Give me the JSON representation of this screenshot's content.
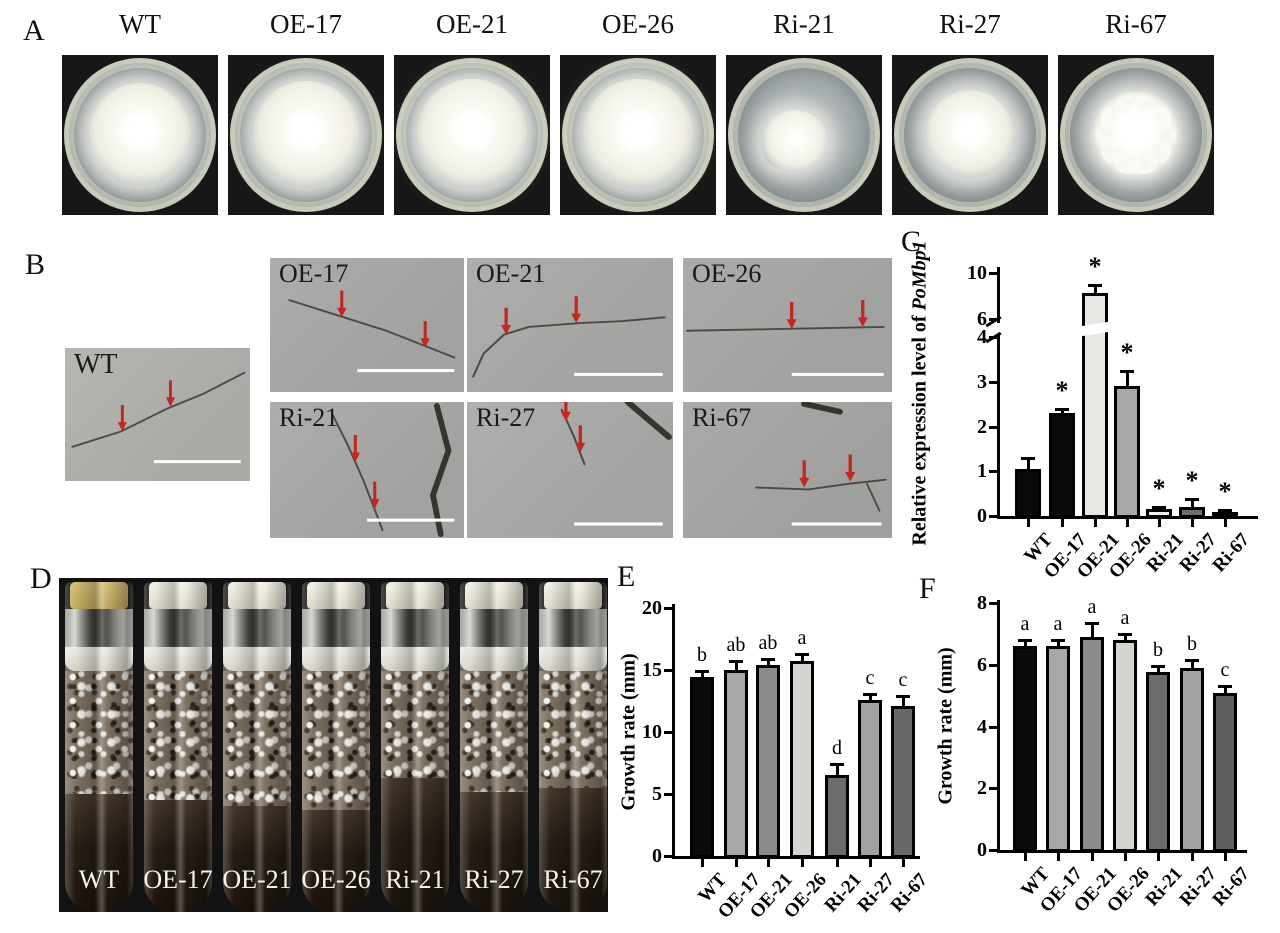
{
  "panels": {
    "A": {
      "letter": "A",
      "dishes": [
        {
          "label": "WT",
          "colony_scale": 0.72,
          "center_spot": true,
          "shape": "round"
        },
        {
          "label": "OE-17",
          "colony_scale": 0.75,
          "center_spot": true,
          "shape": "round"
        },
        {
          "label": "OE-21",
          "colony_scale": 0.78,
          "center_spot": true,
          "shape": "round"
        },
        {
          "label": "OE-26",
          "colony_scale": 0.78,
          "center_spot": true,
          "shape": "round"
        },
        {
          "label": "Ri-21",
          "colony_scale": 0.46,
          "center_spot": false,
          "shape": "irregular"
        },
        {
          "label": "Ri-27",
          "colony_scale": 0.62,
          "center_spot": true,
          "shape": "round"
        },
        {
          "label": "Ri-67",
          "colony_scale": 0.6,
          "center_spot": true,
          "shape": "star"
        }
      ]
    },
    "B": {
      "letter": "B",
      "micrographs": [
        {
          "label": "WT",
          "hypha": [
            [
              4,
              52
            ],
            [
              30,
              44
            ],
            [
              55,
              32
            ],
            [
              75,
              24
            ],
            [
              97,
              13
            ]
          ],
          "arrows": [
            [
              31,
              44
            ],
            [
              57,
              31
            ]
          ],
          "scale_bar": [
            48,
            59,
            95
          ]
        },
        {
          "label": "OE-17",
          "hypha": [
            [
              10,
              22
            ],
            [
              35,
              30
            ],
            [
              60,
              38
            ],
            [
              95,
              52
            ]
          ],
          "arrows": [
            [
              37,
              31
            ],
            [
              80,
              47
            ]
          ],
          "scale_bar": [
            45,
            58,
            95
          ]
        },
        {
          "label": "OE-21",
          "hypha": [
            [
              3,
              62
            ],
            [
              8,
              50
            ],
            [
              18,
              40
            ],
            [
              30,
              36
            ],
            [
              55,
              34
            ],
            [
              75,
              33
            ],
            [
              96,
              31
            ]
          ],
          "arrows": [
            [
              19,
              40
            ],
            [
              53,
              34
            ]
          ],
          "scale_bar": [
            52,
            60,
            95
          ]
        },
        {
          "label": "OE-26",
          "hypha": [
            [
              2,
              38
            ],
            [
              50,
              37
            ],
            [
              96,
              36
            ]
          ],
          "arrows": [
            [
              52,
              37
            ],
            [
              86,
              36
            ]
          ],
          "scale_bar": [
            52,
            60,
            96
          ]
        },
        {
          "label": "Ri-21",
          "hypha": [
            [
              32,
              6
            ],
            [
              40,
              22
            ],
            [
              48,
              40
            ],
            [
              55,
              58
            ],
            [
              58,
              66
            ]
          ],
          "extra": [
            [
              86,
              2
            ],
            [
              92,
              25
            ],
            [
              84,
              48
            ],
            [
              88,
              68
            ]
          ],
          "arrows": [
            [
              44,
              31
            ],
            [
              54,
              55
            ]
          ],
          "scale_bar": [
            50,
            60,
            95
          ]
        },
        {
          "label": "Ri-27",
          "hypha": [
            [
              46,
              4
            ],
            [
              52,
              18
            ],
            [
              57,
              32
            ]
          ],
          "extra": [
            [
              78,
              0
            ],
            [
              98,
              18
            ]
          ],
          "arrows": [
            [
              48,
              10
            ],
            [
              55,
              26
            ]
          ],
          "scale_bar": [
            52,
            62,
            95
          ]
        },
        {
          "label": "Ri-67",
          "hypha": [
            [
              35,
              44
            ],
            [
              60,
              45
            ],
            [
              80,
              42
            ],
            [
              97,
              40
            ]
          ],
          "branch": [
            [
              88,
              42
            ],
            [
              94,
              56
            ]
          ],
          "extra": [
            [
              58,
              1
            ],
            [
              75,
              5
            ]
          ],
          "arrows": [
            [
              58,
              44
            ],
            [
              80,
              41
            ]
          ],
          "scale_bar": [
            52,
            62,
            95
          ]
        }
      ]
    },
    "C": {
      "letter": "C"
    },
    "D": {
      "letter": "D",
      "tube_labels": [
        "WT",
        "OE-17",
        "OE-21",
        "OE-26",
        "Ri-21",
        "Ri-27",
        "Ri-67"
      ]
    },
    "E": {
      "letter": "E"
    },
    "F": {
      "letter": "F"
    }
  },
  "colors": {
    "arrow_red": "#c1281f",
    "scale_bar_white": "#fdfdfb",
    "axis_black": "#000000"
  },
  "chart_data": [
    {
      "id": "C",
      "type": "bar",
      "ylabel_prefix": "Relative expression level of ",
      "ylabel_italic": "PoMbp1",
      "categories": [
        "WT",
        "OE-17",
        "OE-21",
        "OE-26",
        "Ri-21",
        "Ri-27",
        "Ri-67"
      ],
      "values": [
        1.05,
        2.3,
        8.3,
        2.9,
        0.15,
        0.2,
        0.1
      ],
      "errors": [
        0.25,
        0.1,
        0.65,
        0.35,
        0.06,
        0.18,
        0.04
      ],
      "sig": [
        "",
        "*",
        "*",
        "*",
        "*",
        "*",
        "*"
      ],
      "yticks": [
        0,
        1,
        2,
        3,
        4,
        6,
        10
      ],
      "ylim": [
        0,
        10
      ],
      "axis_break": {
        "between": [
          4,
          6
        ]
      },
      "grid": false,
      "bar_colors": [
        "#0a0a0a",
        "#0a0a0a",
        "#e7e7e4",
        "#a8a8a6",
        "#efefec",
        "#6d6d6b",
        "#c6c6c3"
      ]
    },
    {
      "id": "E",
      "type": "bar",
      "ylabel": "Growth rate (mm)",
      "categories": [
        "WT",
        "OE-17",
        "OE-21",
        "OE-26",
        "Ri-21",
        "Ri-27",
        "Ri-67"
      ],
      "values": [
        14.4,
        15.0,
        15.4,
        15.7,
        6.5,
        12.6,
        12.1
      ],
      "errors": [
        0.5,
        0.7,
        0.5,
        0.6,
        0.9,
        0.5,
        0.8
      ],
      "sig": [
        "b",
        "ab",
        "ab",
        "a",
        "d",
        "c",
        "c"
      ],
      "yticks": [
        0,
        5,
        10,
        15,
        20
      ],
      "ylim": [
        0,
        20
      ],
      "grid": false,
      "bar_colors": [
        "#0a0a0a",
        "#a8a8a6",
        "#8b8b89",
        "#d4d4d1",
        "#6b6b69",
        "#a2a2a0",
        "#686866"
      ]
    },
    {
      "id": "F",
      "type": "bar",
      "ylabel": "Growth rate (mm)",
      "categories": [
        "WT",
        "OE-17",
        "OE-21",
        "OE-26",
        "Ri-21",
        "Ri-27",
        "Ri-67"
      ],
      "values": [
        6.6,
        6.6,
        6.9,
        6.8,
        5.75,
        5.9,
        5.1
      ],
      "errors": [
        0.2,
        0.2,
        0.45,
        0.2,
        0.2,
        0.25,
        0.2
      ],
      "sig": [
        "a",
        "a",
        "a",
        "a",
        "b",
        "b",
        "c"
      ],
      "yticks": [
        0,
        2,
        4,
        6,
        8
      ],
      "ylim": [
        0,
        8
      ],
      "grid": false,
      "bar_colors": [
        "#0a0a0a",
        "#a8a8a6",
        "#8b8b89",
        "#d4d4d1",
        "#6b6b69",
        "#a2a2a0",
        "#5f5f5d"
      ]
    }
  ]
}
